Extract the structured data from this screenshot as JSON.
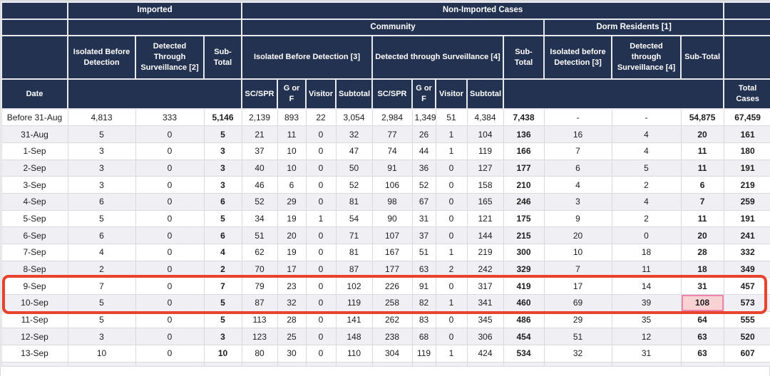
{
  "header": {
    "row1": {
      "imported": "Imported",
      "non_imported": "Non-Imported Cases"
    },
    "row2": {
      "community": "Community",
      "dorm": "Dorm Residents [1]"
    },
    "row3": {
      "imp_isolated": "Isolated Before Detection",
      "imp_detected": "Detected Through Surveillance [2]",
      "imp_subtotal": "Sub-Total",
      "comm_isolated": "Isolated Before Detection [3]",
      "comm_detected": "Detected through Surveillance [4]",
      "comm_subtotal": "Sub-Total",
      "dorm_isolated": "Isolated before Detection [3]",
      "dorm_detected": "Detected through Surveillance [4]",
      "dorm_subtotal": "Sub-Total"
    },
    "row4": {
      "date": "Date",
      "sc_spr_1": "SC/SPR",
      "g_or_f_1": "G or F",
      "visitor_1": "Visitor",
      "subtotal_1": "Subtotal",
      "sc_spr_2": "SC/SPR",
      "g_or_f_2": "G or F",
      "visitor_2": "Visitor",
      "subtotal_2": "Subtotal",
      "total_cases": "Total Cases"
    }
  },
  "rows": [
    {
      "date": "Before 31-Aug",
      "values": [
        "4,813",
        "333",
        "5,146",
        "2,139",
        "893",
        "22",
        "3,054",
        "2,984",
        "1,349",
        "51",
        "4,384",
        "7,438",
        "-",
        "-",
        "54,875",
        "67,459"
      ]
    },
    {
      "date": "31-Aug",
      "values": [
        "5",
        "0",
        "5",
        "21",
        "11",
        "0",
        "32",
        "77",
        "26",
        "1",
        "104",
        "136",
        "16",
        "4",
        "20",
        "161"
      ]
    },
    {
      "date": "1-Sep",
      "values": [
        "3",
        "0",
        "3",
        "37",
        "10",
        "0",
        "47",
        "74",
        "44",
        "1",
        "119",
        "166",
        "7",
        "4",
        "11",
        "180"
      ]
    },
    {
      "date": "2-Sep",
      "values": [
        "3",
        "0",
        "3",
        "40",
        "10",
        "0",
        "50",
        "91",
        "36",
        "0",
        "127",
        "177",
        "6",
        "5",
        "11",
        "191"
      ]
    },
    {
      "date": "3-Sep",
      "values": [
        "3",
        "0",
        "3",
        "46",
        "6",
        "0",
        "52",
        "106",
        "52",
        "0",
        "158",
        "210",
        "4",
        "2",
        "6",
        "219"
      ]
    },
    {
      "date": "4-Sep",
      "values": [
        "6",
        "0",
        "6",
        "52",
        "29",
        "0",
        "81",
        "98",
        "67",
        "0",
        "165",
        "246",
        "3",
        "4",
        "7",
        "259"
      ]
    },
    {
      "date": "5-Sep",
      "values": [
        "5",
        "0",
        "5",
        "34",
        "19",
        "1",
        "54",
        "90",
        "31",
        "0",
        "121",
        "175",
        "9",
        "2",
        "11",
        "191"
      ]
    },
    {
      "date": "6-Sep",
      "values": [
        "6",
        "0",
        "6",
        "51",
        "20",
        "0",
        "71",
        "107",
        "37",
        "0",
        "144",
        "215",
        "20",
        "0",
        "20",
        "241"
      ]
    },
    {
      "date": "7-Sep",
      "values": [
        "4",
        "0",
        "4",
        "62",
        "19",
        "0",
        "81",
        "167",
        "51",
        "1",
        "219",
        "300",
        "10",
        "18",
        "28",
        "332"
      ]
    },
    {
      "date": "8-Sep",
      "values": [
        "2",
        "0",
        "2",
        "70",
        "17",
        "0",
        "87",
        "177",
        "63",
        "2",
        "242",
        "329",
        "7",
        "11",
        "18",
        "349"
      ]
    },
    {
      "date": "9-Sep",
      "values": [
        "7",
        "0",
        "7",
        "79",
        "23",
        "0",
        "102",
        "226",
        "91",
        "0",
        "317",
        "419",
        "17",
        "14",
        "31",
        "457"
      ]
    },
    {
      "date": "10-Sep",
      "values": [
        "5",
        "0",
        "5",
        "87",
        "32",
        "0",
        "119",
        "258",
        "82",
        "1",
        "341",
        "460",
        "69",
        "39",
        "108",
        "573"
      ]
    },
    {
      "date": "11-Sep",
      "values": [
        "5",
        "0",
        "5",
        "113",
        "28",
        "0",
        "141",
        "262",
        "83",
        "0",
        "345",
        "486",
        "29",
        "35",
        "64",
        "555"
      ]
    },
    {
      "date": "12-Sep",
      "values": [
        "3",
        "0",
        "3",
        "123",
        "25",
        "0",
        "148",
        "238",
        "68",
        "0",
        "306",
        "454",
        "51",
        "12",
        "63",
        "520"
      ]
    },
    {
      "date": "13-Sep",
      "values": [
        "10",
        "0",
        "10",
        "80",
        "30",
        "0",
        "110",
        "304",
        "119",
        "1",
        "424",
        "534",
        "32",
        "31",
        "63",
        "607"
      ]
    }
  ],
  "bold_value_columns": [
    2,
    11,
    14,
    15
  ],
  "annotations": {
    "highlight_box_rows": [
      "9-Sep",
      "10-Sep"
    ],
    "highlight_cell": {
      "row": "10-Sep",
      "value_index": 14,
      "value": "108"
    },
    "colors": {
      "header_bg": "#233250",
      "row_alt_bg": "#f0f0f4",
      "highlight_box_border": "#e8432c",
      "highlight_cell_bg": "#f9d2d4",
      "highlight_cell_border": "#ec86ae"
    }
  }
}
